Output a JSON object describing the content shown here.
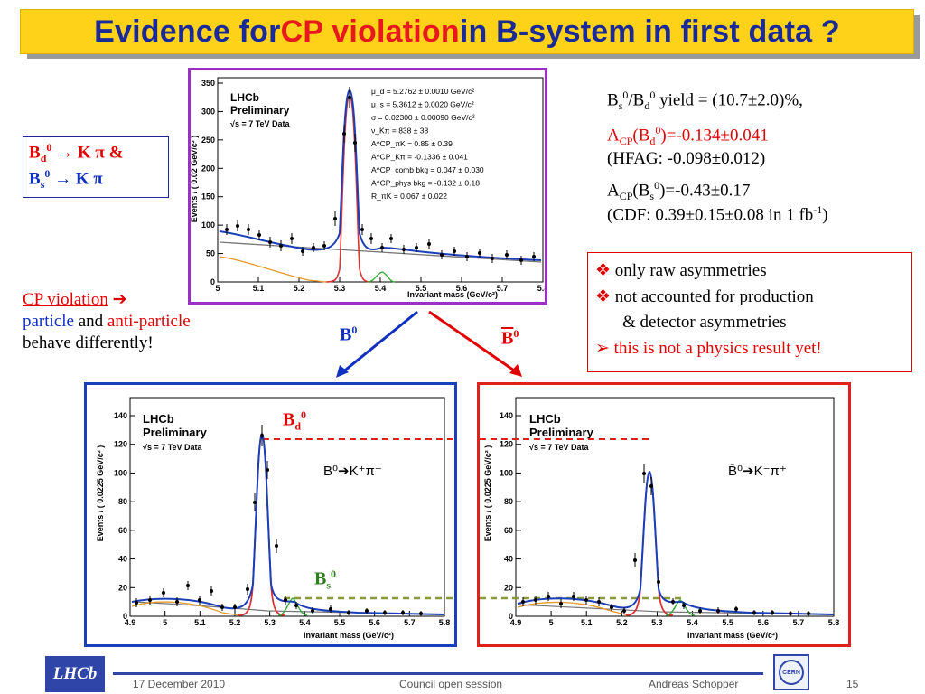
{
  "slide": {
    "title_part1": "Evidence for ",
    "title_part2": "CP violation",
    "title_part3": " in B-system in first data ?"
  },
  "decay_box": {
    "line1_b": "B",
    "line1_sub": "d",
    "line1_sup": "0",
    "line1_rest": " → K π  &",
    "line2_b": "B",
    "line2_sub": "s",
    "line2_sup": "0",
    "line2_rest": " → K π"
  },
  "cp_text": {
    "cp_violation": "CP violation",
    "arrow": " ➔",
    "particle": "particle",
    "and": " and ",
    "anti_particle": "anti-particle",
    "line3": "behave differently!"
  },
  "results": {
    "yield_a": "B",
    "yield_a_sub": "s",
    "yield_a_sup": "0",
    "yield_slash": "/B",
    "yield_b_sub": "d",
    "yield_b_sup": "0",
    "yield_rest": " yield = (10.7±2.0)%,",
    "acp_d_a": "A",
    "acp_d_sub": "CP",
    "acp_d_b": "(B",
    "acp_d_sub2": "d",
    "acp_d_sup": "0",
    "acp_d_rest": ")=-0.134±0.041",
    "hfag": "(HFAG: -0.098±0.012)",
    "acp_s_a": "A",
    "acp_s_sub": "CP",
    "acp_s_b": "(B",
    "acp_s_sub2": "s",
    "acp_s_sup": "0",
    "acp_s_rest": ")=-0.43±0.17",
    "cdf_a": "(CDF: 0.39±0.15±0.08 in 1 fb",
    "cdf_sup": "-1",
    "cdf_b": ")"
  },
  "notes": {
    "item1": "only raw asymmetries",
    "item2": "not accounted for production",
    "item2b": "& detector asymmetries",
    "item3": "this is not a physics result yet!",
    "bullet1": "❖",
    "bullet3": "➢"
  },
  "arrows": {
    "b0": "B",
    "b0_sup": "0",
    "b0bar": "B",
    "b0bar_sup": "0"
  },
  "labels": {
    "bd0": "B",
    "bd0_sub": "d",
    "bd0_sup": "0",
    "bs0": "B",
    "bs0_sub": "s",
    "bs0_sup": "0"
  },
  "plot_top": {
    "lhcb": "LHCb",
    "prelim": "Preliminary",
    "sqrt": "√s = 7 TeV Data",
    "ylabel": "Events / ( 0.02 GeV/c² )",
    "xlabel": "Invariant mass (GeV/c²)",
    "params": [
      "μ_d = 5.2762 ± 0.0010 GeV/c²",
      "μ_s = 5.3612 ± 0.0020 GeV/c²",
      "σ = 0.02300 ± 0.00090 GeV/c²",
      "ν_Kπ = 838 ± 38",
      "A^CP_πK = 0.85 ± 0.39",
      "A^CP_Kπ = -0.1336 ± 0.041",
      "A^CP_comb bkg = 0.047 ± 0.030",
      "A^CP_phys bkg = -0.132 ± 0.18",
      "R_πK = 0.067 ± 0.022"
    ],
    "yticks": [
      "0",
      "50",
      "100",
      "150",
      "200",
      "250",
      "300",
      "350"
    ],
    "xticks": [
      "5",
      "5.1",
      "5.2",
      "5.3",
      "5.4",
      "5.5",
      "5.6",
      "5.7",
      "5.8"
    ]
  },
  "plot_left": {
    "lhcb": "LHCb",
    "prelim": "Preliminary",
    "sqrt": "√s = 7 TeV Data",
    "decay": "B⁰➔K⁺π⁻",
    "ylabel": "Events / ( 0.0225 GeV/c² )",
    "xlabel": "Invariant mass (GeV/c²)",
    "yticks": [
      "0",
      "20",
      "40",
      "60",
      "80",
      "100",
      "120",
      "140"
    ],
    "xticks": [
      "4.9",
      "5",
      "5.1",
      "5.2",
      "5.3",
      "5.4",
      "5.5",
      "5.6",
      "5.7",
      "5.8"
    ]
  },
  "plot_right": {
    "lhcb": "LHCb",
    "prelim": "Preliminary",
    "sqrt": "√s = 7 TeV Data",
    "decay": "B̄⁰➔K⁻π⁺",
    "ylabel": "Events / ( 0.0225 GeV/c² )",
    "xlabel": "Invariant mass (GeV/c²)",
    "yticks": [
      "0",
      "20",
      "40",
      "60",
      "80",
      "100",
      "120",
      "140"
    ],
    "xticks": [
      "4.9",
      "5",
      "5.1",
      "5.2",
      "5.3",
      "5.4",
      "5.5",
      "5.6",
      "5.7",
      "5.8"
    ]
  },
  "footer": {
    "date": "17 December 2010",
    "session": "Council open session",
    "author": "Andreas Schopper",
    "page": "15",
    "lhcb_logo": "LHCb",
    "cern_logo": "CERN"
  },
  "colors": {
    "title_bg": "#ffd21a",
    "title_text": "#1a2a99",
    "accent_red": "#e00000",
    "accent_blue": "#1030c0",
    "purple_frame": "#9b30c8"
  }
}
